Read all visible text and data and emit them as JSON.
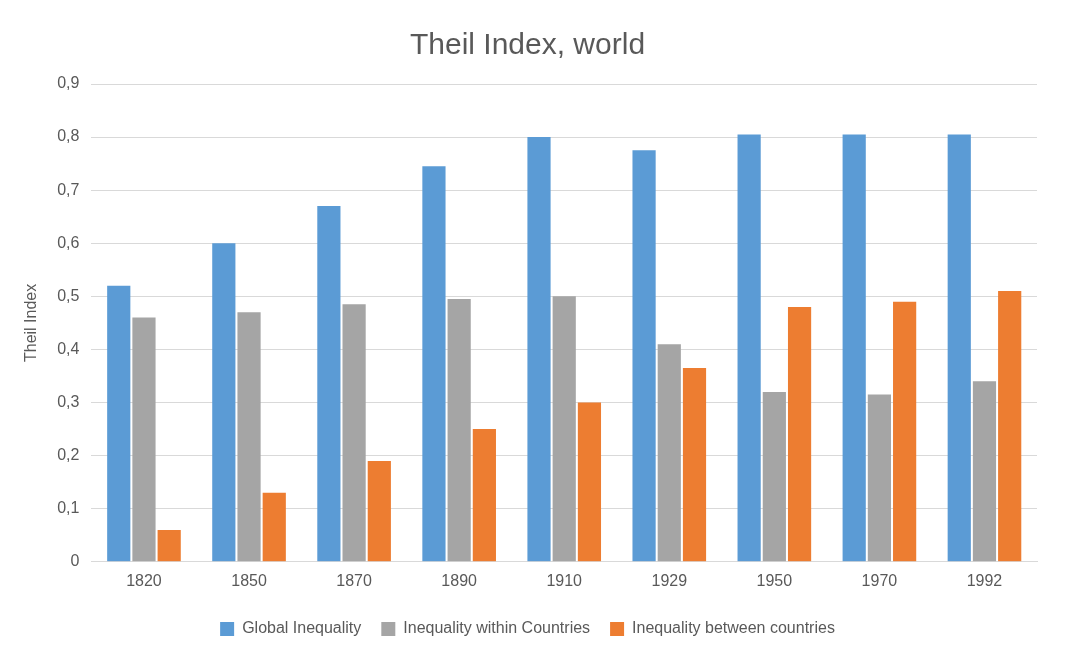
{
  "chart_data": {
    "type": "bar",
    "title": "Theil Index, world",
    "ylabel": "Theil Index",
    "categories": [
      "1820",
      "1850",
      "1870",
      "1890",
      "1910",
      "1929",
      "1950",
      "1970",
      "1992"
    ],
    "series": [
      {
        "name": "Global Inequality",
        "color": "#5b9bd5",
        "values": [
          0.52,
          0.6,
          0.67,
          0.745,
          0.8,
          0.775,
          0.805,
          0.805,
          0.805
        ]
      },
      {
        "name": "Inequality within Countries",
        "color": "#a5a5a5",
        "values": [
          0.46,
          0.47,
          0.485,
          0.495,
          0.5,
          0.41,
          0.32,
          0.315,
          0.34
        ]
      },
      {
        "name": "Inequality between countries",
        "color": "#ed7d31",
        "values": [
          0.06,
          0.13,
          0.19,
          0.25,
          0.3,
          0.365,
          0.48,
          0.49,
          0.51
        ]
      }
    ],
    "ylim": [
      0,
      0.9
    ],
    "yticks": [
      0,
      {
        "value": 0.1,
        "label": "0,1"
      },
      {
        "value": 0.2,
        "label": "0,2"
      },
      {
        "value": 0.3,
        "label": "0,3"
      },
      {
        "value": 0.4,
        "label": "0,4"
      },
      {
        "value": 0.5,
        "label": "0,5"
      },
      {
        "value": 0.6,
        "label": "0,6"
      },
      {
        "value": 0.7,
        "label": "0,7"
      },
      {
        "value": 0.8,
        "label": "0,8"
      },
      {
        "value": 0.9,
        "label": "0,9"
      }
    ],
    "grid": "y",
    "legend": "bottom"
  }
}
